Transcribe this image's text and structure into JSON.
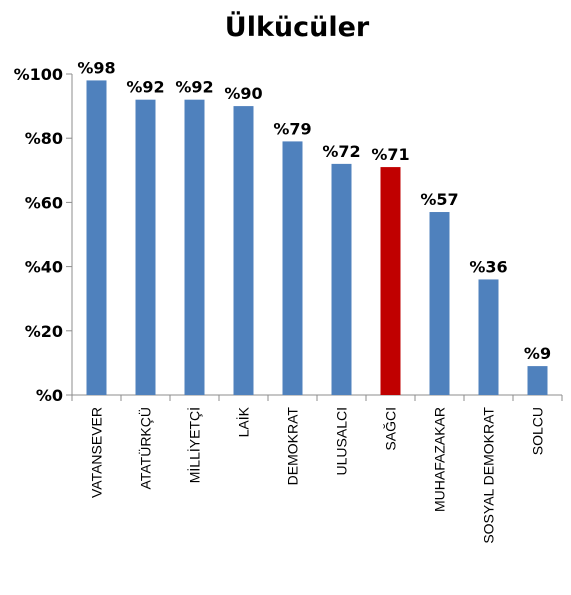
{
  "chart_data": {
    "type": "bar",
    "title": "Ülkücüler",
    "categories": [
      "VATANSEVER",
      "ATATÜRKÇÜ",
      "MİLLİYETÇİ",
      "LAİK",
      "DEMOKRAT",
      "ULUSALCI",
      "SAĞCI",
      "MUHAFAZAKAR",
      "SOSYAL DEMOKRAT",
      "SOLCU"
    ],
    "values": [
      98,
      92,
      92,
      90,
      79,
      72,
      71,
      57,
      36,
      9
    ],
    "data_labels": [
      "%98",
      "%92",
      "%92",
      "%90",
      "%79",
      "%72",
      "%71",
      "%57",
      "%36",
      "%9"
    ],
    "yticks": [
      0,
      20,
      40,
      60,
      80,
      100
    ],
    "ytick_labels": [
      "%0",
      "%20",
      "%40",
      "%60",
      "%80",
      "%100"
    ],
    "ylim": [
      0,
      100
    ],
    "xlabel": "",
    "ylabel": "",
    "grid": false,
    "legend": "none",
    "colors": {
      "bar": "#4f81bd",
      "highlight": "#c00000",
      "axis": "#8c8c8c"
    },
    "highlight_category": "SAĞCI"
  }
}
